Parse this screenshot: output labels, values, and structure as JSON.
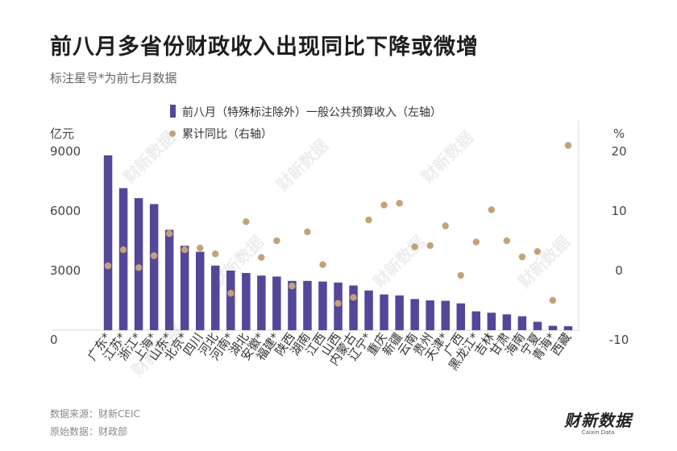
{
  "chart_data": {
    "type": "bar",
    "title": "前八月多省份财政收入出现同比下降或微增",
    "subtitle": "标注星号*为前七月数据",
    "ylabel_left": "亿元",
    "ylabel_right": "%",
    "ylim_left": [
      0,
      9000
    ],
    "ylim_right": [
      -10,
      20
    ],
    "yticks_left": [
      "0",
      "3000",
      "6000",
      "9000"
    ],
    "yticks_right": [
      "-10",
      "0",
      "10",
      "20"
    ],
    "legend_position": "top",
    "colors": {
      "bar": "#54479a",
      "dot": "#c3a279"
    },
    "categories": [
      "广东*",
      "江苏*",
      "浙江*",
      "上海*",
      "山东*",
      "北京*",
      "四川",
      "河北",
      "河南*",
      "湖北",
      "安徽*",
      "福建*",
      "陕西",
      "湖南",
      "江西",
      "山西",
      "内蒙古",
      "辽宁*",
      "重庆",
      "新疆",
      "云南",
      "贵州",
      "天津*",
      "广西",
      "黑龙江*",
      "吉林",
      "甘肃",
      "海南",
      "宁夏",
      "青海*",
      "西藏"
    ],
    "series": [
      {
        "name": "前八月（特殊标注除外）一般公共预算收入（左轴）",
        "type": "bar",
        "axis": "left",
        "values": [
          8800,
          7150,
          6650,
          6350,
          5050,
          4250,
          3950,
          3250,
          3000,
          2880,
          2750,
          2700,
          2480,
          2480,
          2450,
          2400,
          2250,
          2000,
          1800,
          1750,
          1570,
          1500,
          1480,
          1350,
          950,
          880,
          800,
          700,
          420,
          220,
          200
        ]
      },
      {
        "name": "累计同比（右轴）",
        "type": "scatter",
        "axis": "right",
        "values": [
          0.8,
          3.5,
          0.5,
          2.5,
          6.2,
          3.5,
          3.8,
          2.8,
          -3.8,
          8.2,
          2.2,
          5.0,
          -2.6,
          6.5,
          1.0,
          -5.5,
          -4.5,
          8.5,
          11.0,
          11.3,
          4.0,
          4.2,
          7.5,
          -0.8,
          4.8,
          10.2,
          5.0,
          2.3,
          3.2,
          -5.0,
          21.0
        ]
      }
    ]
  },
  "watermark_text": "财新数据",
  "source_line1": "数据来源：财新CEIC",
  "source_line2": "原始数据：财政部",
  "logo": {
    "main": "财新数据",
    "sub": "Caixin Data"
  }
}
